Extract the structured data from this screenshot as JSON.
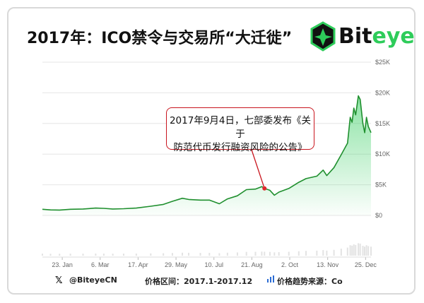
{
  "header": {
    "title": "2017年：ICO禁令与交易所“大迁徙”",
    "logo_text_1": "Bit",
    "logo_text_2": "eye"
  },
  "annotation": {
    "line1": "2017年9月4日，七部委发布《关于",
    "line2": "防范代币发行融资风险的公告》"
  },
  "footer": {
    "twitter_handle": "@BiteyeCN",
    "price_range": "价格区间：2017.1-2017.12",
    "source": "价格趋势来源：Co"
  },
  "colors": {
    "line": "#1f8f2e",
    "area": "#2ecc5a",
    "annotation_border": "#c9151e",
    "marker": "#e0282e"
  },
  "chart_data": {
    "type": "area",
    "x_tick_labels": [
      "23. Jan",
      "6. Mar",
      "17. Apr",
      "29. May",
      "10. Jul",
      "21. Aug",
      "2. Oct",
      "13. Nov",
      "25. Dec"
    ],
    "y_tick_labels": [
      "$0",
      "$5K",
      "$10K",
      "$15K",
      "$20K",
      "$25K"
    ],
    "ylim": [
      0,
      25000
    ],
    "x": [
      "2017-01-01",
      "2017-01-10",
      "2017-01-20",
      "2017-02-01",
      "2017-02-15",
      "2017-03-01",
      "2017-03-10",
      "2017-03-20",
      "2017-04-01",
      "2017-04-15",
      "2017-05-01",
      "2017-05-15",
      "2017-05-25",
      "2017-06-05",
      "2017-06-12",
      "2017-06-25",
      "2017-07-05",
      "2017-07-16",
      "2017-07-25",
      "2017-08-05",
      "2017-08-15",
      "2017-08-25",
      "2017-09-01",
      "2017-09-04",
      "2017-09-10",
      "2017-09-15",
      "2017-09-20",
      "2017-10-01",
      "2017-10-12",
      "2017-10-20",
      "2017-11-01",
      "2017-11-08",
      "2017-11-12",
      "2017-11-20",
      "2017-11-28",
      "2017-12-05",
      "2017-12-08",
      "2017-12-10",
      "2017-12-12",
      "2017-12-14",
      "2017-12-17",
      "2017-12-19",
      "2017-12-22",
      "2017-12-24",
      "2017-12-26",
      "2017-12-28",
      "2017-12-31"
    ],
    "values": [
      1000,
      900,
      880,
      1000,
      1050,
      1200,
      1150,
      1050,
      1100,
      1200,
      1500,
      1800,
      2300,
      2800,
      2600,
      2500,
      2500,
      1900,
      2700,
      3200,
      4200,
      4300,
      4700,
      4400,
      4100,
      3300,
      3800,
      4400,
      5400,
      6000,
      6400,
      7400,
      6500,
      7800,
      9900,
      11800,
      16000,
      15200,
      17500,
      16400,
      19500,
      18900,
      15000,
      13500,
      16000,
      14500,
      13500
    ]
  }
}
